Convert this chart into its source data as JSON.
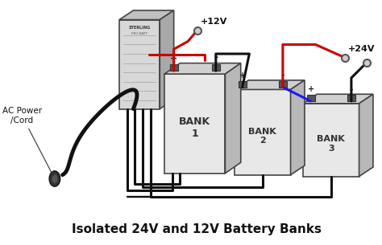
{
  "title": "Isolated 24V and 12V Battery Banks",
  "title_fontsize": 11,
  "bg_color": "#ffffff",
  "fig_w": 4.74,
  "fig_h": 3.05,
  "wire_color_black": "#111111",
  "wire_color_red": "#cc0000",
  "wire_color_blue": "#1a1aee",
  "battery_face_color": "#e8e8e8",
  "battery_top_color": "#d0d0d0",
  "battery_right_color": "#b8b8b8",
  "battery_edge_color": "#444444",
  "charger_face_color": "#d8d8d8",
  "charger_top_color": "#c0c0c0",
  "charger_right_color": "#a8a8a8",
  "charger_edge_color": "#444444",
  "terminal_color": "#555555",
  "label_color": "#111111",
  "plus12v_label": "+12V",
  "plus24v_label": "+24V",
  "bank1_label": "BANK\n1",
  "bank2_label": "BANK\n2",
  "bank3_label": "BANK\n3",
  "ac_label": "AC Power\n/Cord"
}
